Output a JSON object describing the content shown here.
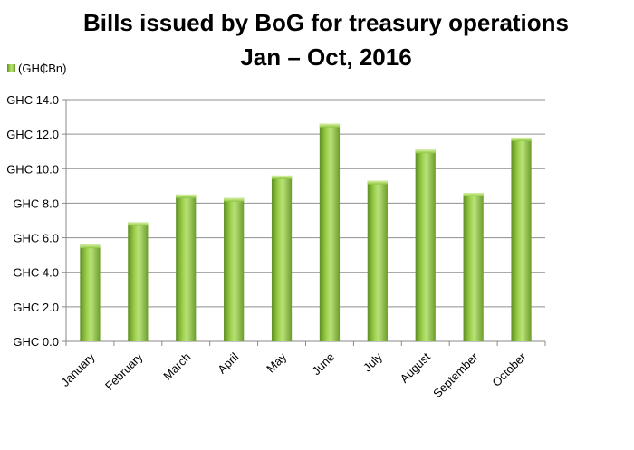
{
  "chart_data": {
    "type": "bar",
    "title": "Bills issued by BoG for treasury operations",
    "subtitle": "Jan – Oct, 2016",
    "series": [
      {
        "name": "(GH₵Bn)",
        "values": [
          5.6,
          6.9,
          8.5,
          8.3,
          9.6,
          12.6,
          9.3,
          11.1,
          8.6,
          11.8
        ]
      }
    ],
    "categories": [
      "January",
      "February",
      "March",
      "April",
      "May",
      "June",
      "July",
      "August",
      "September",
      "October"
    ],
    "y_ticks": [
      "GHC 0.0",
      "GHC 2.0",
      "GHC 4.0",
      "GHC 6.0",
      "GHC 8.0",
      "GHC 10.0",
      "GHC 12.0",
      "GHC 14.0"
    ],
    "ylim": [
      0,
      14
    ],
    "grid": true,
    "legend_position": "top-left",
    "bar_color": "#8cc63f",
    "bar_dark": "#5a8a1f",
    "bar_light": "#c9e88a"
  }
}
